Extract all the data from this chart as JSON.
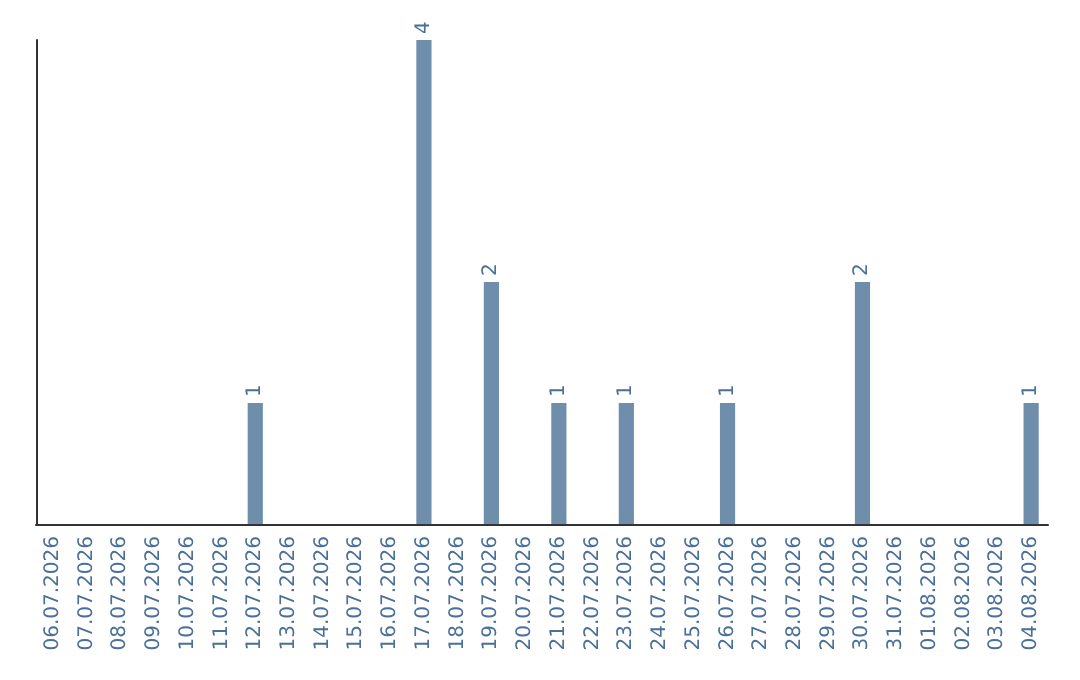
{
  "chart_data": {
    "type": "bar",
    "categories": [
      "06.07.2026",
      "07.07.2026",
      "08.07.2026",
      "09.07.2026",
      "10.07.2026",
      "11.07.2026",
      "12.07.2026",
      "13.07.2026",
      "14.07.2026",
      "15.07.2026",
      "16.07.2026",
      "17.07.2026",
      "18.07.2026",
      "19.07.2026",
      "20.07.2026",
      "21.07.2026",
      "22.07.2026",
      "23.07.2026",
      "24.07.2026",
      "25.07.2026",
      "26.07.2026",
      "27.07.2026",
      "28.07.2026",
      "29.07.2026",
      "30.07.2026",
      "31.07.2026",
      "01.08.2026",
      "02.08.2026",
      "03.08.2026",
      "04.08.2026"
    ],
    "values": [
      0,
      0,
      0,
      0,
      0,
      0,
      1,
      0,
      0,
      0,
      0,
      4,
      0,
      2,
      0,
      1,
      0,
      1,
      0,
      0,
      1,
      0,
      0,
      0,
      2,
      0,
      0,
      0,
      0,
      1
    ],
    "value_labels": [
      null,
      null,
      null,
      null,
      null,
      null,
      "1",
      null,
      null,
      null,
      null,
      "4",
      null,
      "2",
      null,
      "1",
      null,
      "1",
      null,
      null,
      "1",
      null,
      null,
      null,
      "2",
      null,
      null,
      null,
      null,
      "1"
    ],
    "color": "#6e8eab",
    "ylim": [
      0,
      4
    ],
    "tick_labels": "x"
  }
}
